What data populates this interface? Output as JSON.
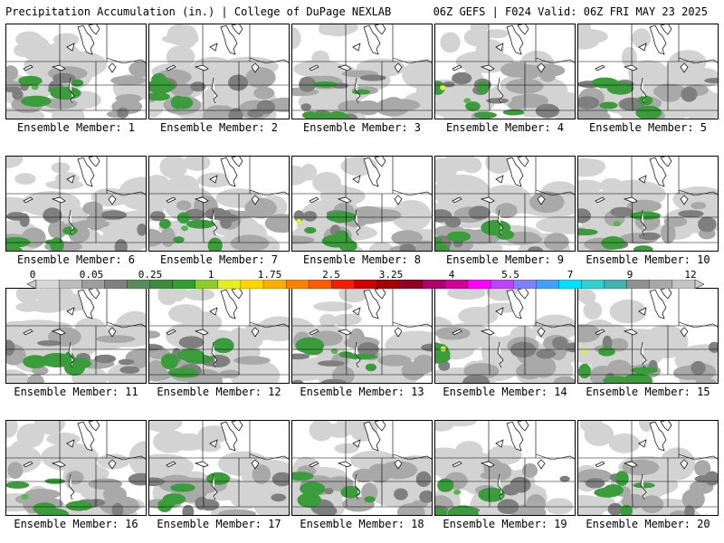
{
  "header": {
    "title": "Precipitation Accumulation (in.) | College of DuPage NEXLAB",
    "run_info": "06Z GEFS | F024 Valid: 06Z FRI MAY 23 2025"
  },
  "panels": [
    {
      "label": "Ensemble Member: 1"
    },
    {
      "label": "Ensemble Member: 2"
    },
    {
      "label": "Ensemble Member: 3"
    },
    {
      "label": "Ensemble Member: 4"
    },
    {
      "label": "Ensemble Member: 5"
    },
    {
      "label": "Ensemble Member: 6"
    },
    {
      "label": "Ensemble Member: 7"
    },
    {
      "label": "Ensemble Member: 8"
    },
    {
      "label": "Ensemble Member: 9"
    },
    {
      "label": "Ensemble Member: 10"
    },
    {
      "label": "Ensemble Member: 11"
    },
    {
      "label": "Ensemble Member: 12"
    },
    {
      "label": "Ensemble Member: 13"
    },
    {
      "label": "Ensemble Member: 14"
    },
    {
      "label": "Ensemble Member: 15"
    },
    {
      "label": "Ensemble Member: 16"
    },
    {
      "label": "Ensemble Member: 17"
    },
    {
      "label": "Ensemble Member: 18"
    },
    {
      "label": "Ensemble Member: 19"
    },
    {
      "label": "Ensemble Member: 20"
    }
  ],
  "legend": {
    "labels": [
      "0",
      "0.05",
      "0.25",
      "1",
      "1.75",
      "2.5",
      "3.25",
      "4",
      "5.5",
      "7",
      "9",
      "12"
    ],
    "colors": [
      "#d8d8d8",
      "#bcbcbc",
      "#9e9e9e",
      "#808080",
      "#5a8a5a",
      "#3c8c3c",
      "#2f9f2f",
      "#8fcc2a",
      "#e6ef1e",
      "#ffd400",
      "#ffae00",
      "#ff8000",
      "#ff5a00",
      "#f02000",
      "#d00000",
      "#a80000",
      "#900020",
      "#b0006a",
      "#d0009a",
      "#ff00ff",
      "#c040ff",
      "#8080ff",
      "#40a0ff",
      "#00e0ff",
      "#30d0d0",
      "#40b0b0",
      "#909090",
      "#a8a8a8",
      "#c4c4c4"
    ]
  },
  "palette": {
    "light_gray": "#d3d3d3",
    "gray": "#a9a9a9",
    "dark_gray": "#7f7f7f",
    "green": "#3a9c3a",
    "bright_green": "#52b852",
    "lime": "#d8f040",
    "border": "#000000"
  }
}
